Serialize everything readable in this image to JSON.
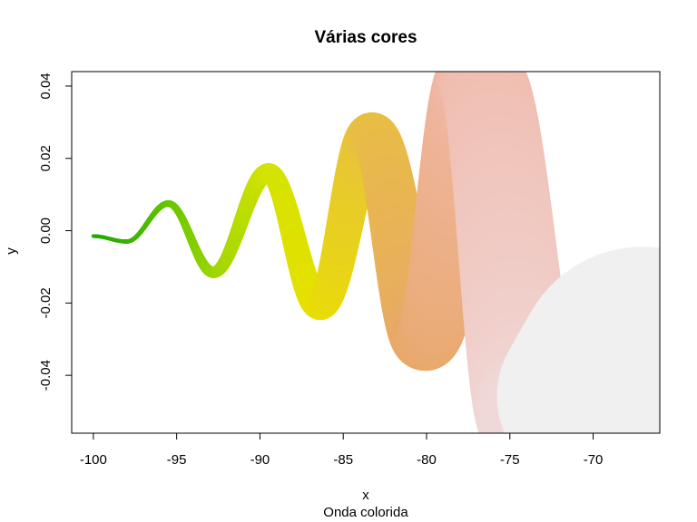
{
  "chart_data": {
    "type": "line",
    "title": "Várias cores",
    "xlabel": "x",
    "ylabel": "y",
    "subtitle": "Onda colorida",
    "xlim": [
      -101.3,
      -66.0
    ],
    "ylim": [
      -0.056,
      0.044
    ],
    "x_ticks": [
      -100,
      -95,
      -90,
      -85,
      -80,
      -75,
      -70
    ],
    "x_tick_labels": [
      "-100",
      "-95",
      "-90",
      "-85",
      "-80",
      "-75",
      "-70"
    ],
    "y_ticks": [
      -0.04,
      -0.02,
      0.0,
      0.02,
      0.04
    ],
    "y_tick_labels": [
      "-0.04",
      "-0.02",
      "0.00",
      "0.02",
      "0.04"
    ],
    "grid": false,
    "legend": "none",
    "series": [
      {
        "x": [
          -100.0,
          -98.0,
          -95.5,
          -92.8,
          -89.5,
          -86.4,
          -83.3,
          -80.1,
          -76.8,
          -73.5
        ],
        "y": [
          -0.0015,
          -0.003,
          0.0075,
          -0.0115,
          0.016,
          -0.0205,
          0.0265,
          -0.03,
          0.0415,
          -0.052
        ],
        "colors": [
          "#22aa00",
          "#33b300",
          "#66c400",
          "#99d500",
          "#d2e300",
          "#e8e000",
          "#e8c040",
          "#e8a868",
          "#f0b8a8",
          "#f0d8d8"
        ]
      }
    ],
    "end_blob_color": "#f0f0f0"
  }
}
